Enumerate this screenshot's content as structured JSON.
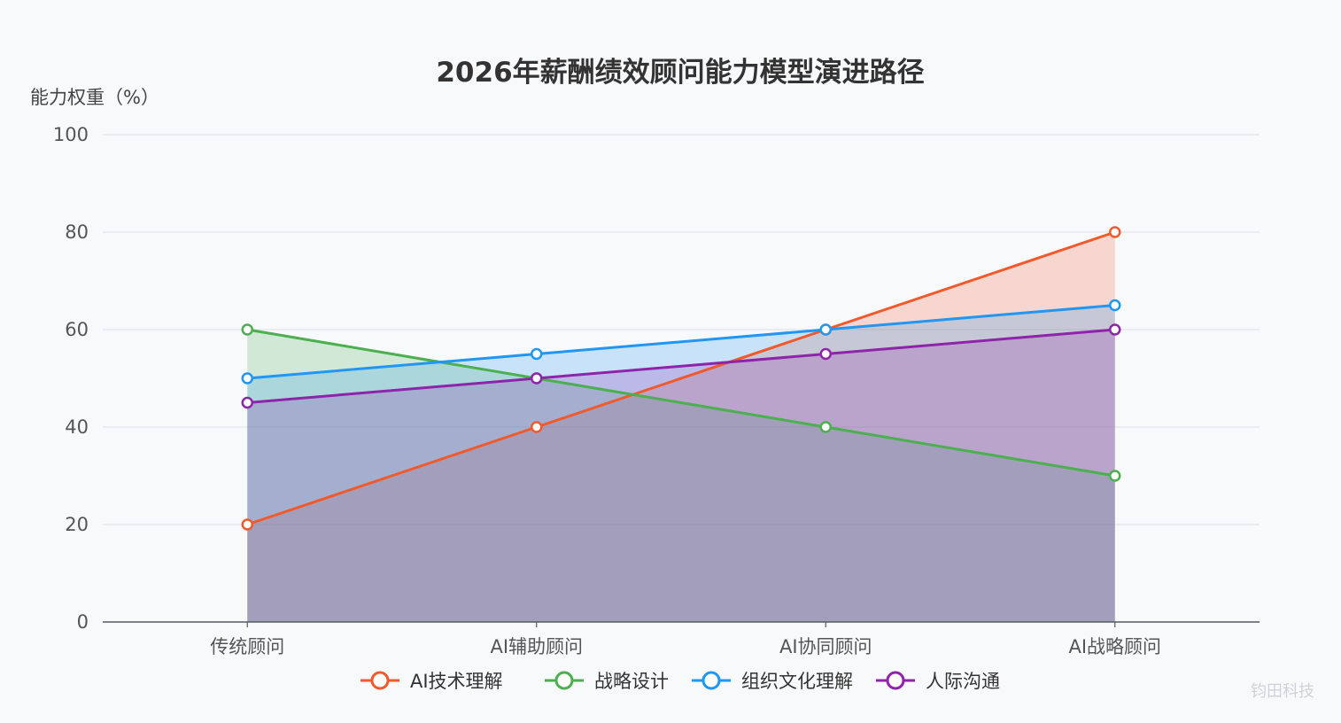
{
  "chart_data": {
    "type": "area",
    "title": "2026年薪酬绩效顾问能力模型演进路径",
    "ylabel": "能力权重（%）",
    "xlabel": "",
    "categories": [
      "传统顾问",
      "AI辅助顾问",
      "AI协同顾问",
      "AI战略顾问"
    ],
    "ylim": [
      0,
      100
    ],
    "yticks": [
      0,
      20,
      40,
      60,
      80,
      100
    ],
    "grid": true,
    "legend_position": "bottom",
    "series": [
      {
        "name": "AI技术理解",
        "values": [
          20,
          40,
          60,
          80
        ],
        "color": "#f05a2c"
      },
      {
        "name": "战略设计",
        "values": [
          60,
          50,
          40,
          30
        ],
        "color": "#4caf50"
      },
      {
        "name": "组织文化理解",
        "values": [
          50,
          55,
          60,
          65
        ],
        "color": "#2196f3"
      },
      {
        "name": "人际沟通",
        "values": [
          45,
          50,
          55,
          60
        ],
        "color": "#8e24aa"
      }
    ]
  },
  "watermark": "钧田科技"
}
